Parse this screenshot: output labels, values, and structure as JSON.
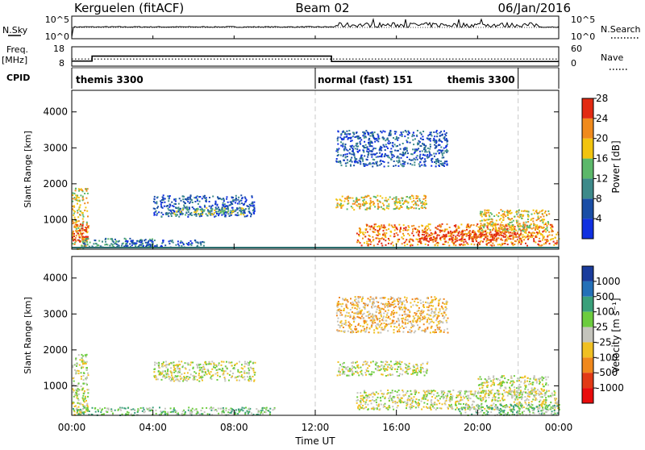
{
  "header": {
    "station": "Kerguelen (fitACF)",
    "beam": "Beam 02",
    "date": "06/Jan/2016"
  },
  "top_panel": {
    "left_label": "N.Sky",
    "right_label": "N.Search",
    "left_ticks": [
      "10^5",
      "10^0"
    ],
    "right_ticks": [
      "10^5",
      "10^0"
    ]
  },
  "freq_panel": {
    "left_label": "Freq.",
    "left_unit": "[MHz]",
    "right_label": "Nave",
    "left_ticks": [
      "18",
      "8"
    ],
    "right_ticks": [
      "60",
      "0"
    ],
    "freq_steps": [
      {
        "t0": 0,
        "t1": 1.0,
        "mhz": 10.6
      },
      {
        "t0": 1.0,
        "t1": 12.8,
        "mhz": 13.2
      },
      {
        "t0": 12.8,
        "t1": 24,
        "mhz": 10.4
      }
    ],
    "nave_level": 22
  },
  "cpid": {
    "label": "CPID",
    "segments": [
      {
        "name": "themis 3300",
        "start": 0,
        "end": 12
      },
      {
        "name": "normal (fast) 151",
        "start": 12,
        "end": 22
      },
      {
        "name": "themis 3300",
        "start": 22,
        "end": 24
      }
    ]
  },
  "chart_data": [
    {
      "type": "heatmap",
      "name": "Power",
      "ylabel": "Slant Range [km]",
      "xlabel": "Time UT",
      "yticks": [
        "1000",
        "2000",
        "3000",
        "4000"
      ],
      "ylim": [
        180,
        4600
      ],
      "xlim": [
        0,
        24
      ],
      "colorbar": {
        "label": "Power [dB]",
        "ticks": [
          "4",
          "8",
          "12",
          "16",
          "20",
          "24",
          "28"
        ],
        "colors": [
          "#1030e0",
          "#1a4ea6",
          "#3d8a8a",
          "#5cb86a",
          "#f2c40f",
          "#f08a1c",
          "#e22a12"
        ]
      },
      "patches": [
        {
          "t0": 0.0,
          "t1": 0.8,
          "r0": 200,
          "r1": 1900,
          "level": 4
        },
        {
          "t0": 0.0,
          "t1": 0.8,
          "r0": 400,
          "r1": 900,
          "level": 6
        },
        {
          "t0": 0.5,
          "t1": 4.0,
          "r0": 250,
          "r1": 500,
          "level": 2
        },
        {
          "t0": 4.0,
          "t1": 9.0,
          "r0": 1100,
          "r1": 1700,
          "level": 1
        },
        {
          "t0": 5.0,
          "t1": 8.5,
          "r0": 1150,
          "r1": 1350,
          "level": 3
        },
        {
          "t0": 2.5,
          "t1": 6.5,
          "r0": 250,
          "r1": 450,
          "level": 1
        },
        {
          "t0": 13.0,
          "t1": 17.5,
          "r0": 1300,
          "r1": 1700,
          "level": 4
        },
        {
          "t0": 14.0,
          "t1": 24.0,
          "r0": 300,
          "r1": 900,
          "level": 5
        },
        {
          "t0": 17.0,
          "t1": 22.0,
          "r0": 400,
          "r1": 700,
          "level": 6
        },
        {
          "t0": 20.0,
          "t1": 23.5,
          "r0": 700,
          "r1": 1300,
          "level": 4
        },
        {
          "t0": 13.0,
          "t1": 18.5,
          "r0": 2500,
          "r1": 3500,
          "level": 1
        }
      ]
    },
    {
      "type": "heatmap",
      "name": "Velocity",
      "ylabel": "Slant Range [km]",
      "xlabel": "Time UT",
      "yticks": [
        "1000",
        "2000",
        "3000",
        "4000"
      ],
      "xticks": [
        "00:00",
        "04:00",
        "08:00",
        "12:00",
        "16:00",
        "20:00",
        "00:00"
      ],
      "ylim": [
        180,
        4600
      ],
      "xlim": [
        0,
        24
      ],
      "colorbar": {
        "label": "Velocity [m s⁻¹]",
        "ticks": [
          "1000",
          "500",
          "100",
          "25",
          "-25",
          "-100",
          "-500",
          "-1000"
        ],
        "colors": [
          "#1a3c9c",
          "#2470b8",
          "#3aa07a",
          "#6ccc3e",
          "#c4c4bc",
          "#f0c022",
          "#f0881c",
          "#e23a16",
          "#e80c0c"
        ]
      },
      "patches": [
        {
          "t0": 0.0,
          "t1": 0.8,
          "r0": 200,
          "r1": 1900,
          "level": 4
        },
        {
          "t0": 0.0,
          "t1": 10.0,
          "r0": 200,
          "r1": 420,
          "level": 3
        },
        {
          "t0": 4.0,
          "t1": 9.0,
          "r0": 1150,
          "r1": 1700,
          "level": 4
        },
        {
          "t0": 13.0,
          "t1": 17.5,
          "r0": 1300,
          "r1": 1700,
          "level": 4
        },
        {
          "t0": 14.0,
          "t1": 24.0,
          "r0": 350,
          "r1": 900,
          "level": 4
        },
        {
          "t0": 19.0,
          "t1": 24.0,
          "r0": 200,
          "r1": 500,
          "level": 3
        },
        {
          "t0": 20.0,
          "t1": 23.5,
          "r0": 800,
          "r1": 1300,
          "level": 4
        },
        {
          "t0": 13.0,
          "t1": 18.5,
          "r0": 2500,
          "r1": 3500,
          "level": 5
        }
      ]
    }
  ]
}
